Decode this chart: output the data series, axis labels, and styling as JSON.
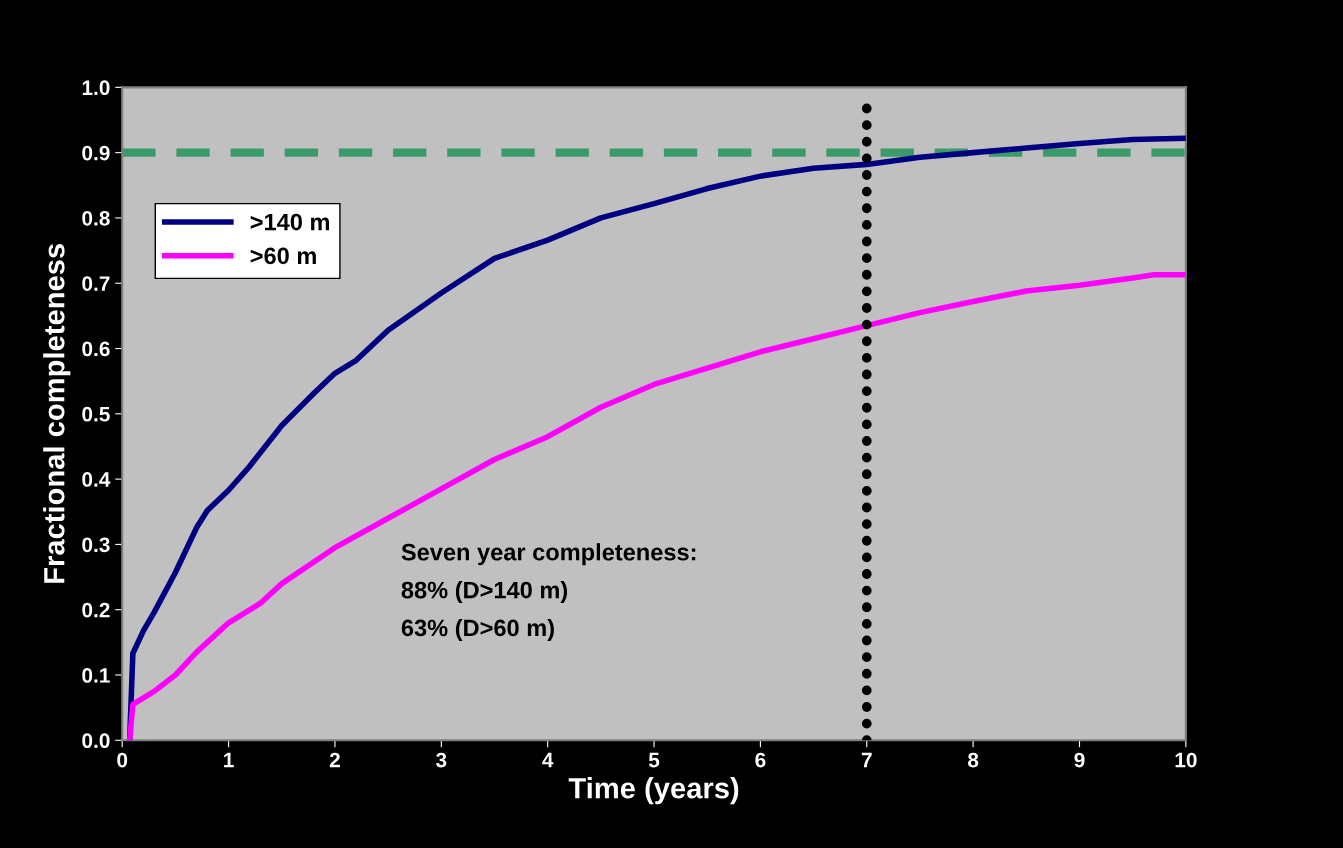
{
  "chart_data": {
    "type": "line",
    "xlabel": "Time (years)",
    "ylabel": "Fractional completeness",
    "xlim": [
      0,
      10
    ],
    "xticks": [
      0,
      1,
      2,
      3,
      4,
      5,
      6,
      7,
      8,
      9,
      10
    ],
    "ylim": [
      0.0,
      1.0
    ],
    "yticks": [
      {
        "value": 0,
        "label": "0.0"
      },
      0.1,
      0.2,
      0.3,
      0.4,
      0.5,
      0.6,
      0.7,
      0.8,
      0.9,
      {
        "value": 1,
        "label": "1.0"
      }
    ],
    "grid": false,
    "legend": "upper left",
    "marker": "none",
    "line_style": "solid",
    "series": [
      {
        "name": ">140 m",
        "color": "#000080",
        "x": [
          0.07,
          0.1,
          0.2,
          0.3,
          0.5,
          0.7,
          0.8,
          1.0,
          1.2,
          1.5,
          1.8,
          2.0,
          2.2,
          2.5,
          3.0,
          3.5,
          4.0,
          4.5,
          5.0,
          5.5,
          6.0,
          6.5,
          7.0,
          7.5,
          8.0,
          8.5,
          9.0,
          9.5,
          10.0
        ],
        "values": [
          0,
          0.133,
          0.168,
          0.196,
          0.257,
          0.326,
          0.352,
          0.383,
          0.42,
          0.482,
          0.531,
          0.562,
          0.582,
          0.628,
          0.685,
          0.738,
          0.766,
          0.8,
          0.822,
          0.845,
          0.864,
          0.876,
          0.882,
          0.893,
          0.9,
          0.907,
          0.914,
          0.92,
          0.922
        ]
      },
      {
        "name": ">60 m",
        "color": "#ff00ff",
        "x": [
          0.07,
          0.1,
          0.3,
          0.5,
          0.7,
          1.0,
          1.3,
          1.5,
          2.0,
          2.5,
          3.0,
          3.5,
          4.0,
          4.5,
          5.0,
          5.5,
          6.0,
          6.5,
          7.0,
          7.5,
          8.0,
          8.5,
          9.0,
          9.5,
          9.7,
          10.0
        ],
        "values": [
          0,
          0.055,
          0.075,
          0.1,
          0.135,
          0.18,
          0.21,
          0.24,
          0.295,
          0.34,
          0.385,
          0.43,
          0.465,
          0.51,
          0.545,
          0.57,
          0.595,
          0.615,
          0.635,
          0.655,
          0.672,
          0.688,
          0.697,
          0.708,
          0.713,
          0.713
        ]
      }
    ],
    "ref_lines": [
      {
        "axis": "y",
        "value": 0.9,
        "color": "#3a9a6a",
        "line_style": "dashed"
      },
      {
        "axis": "x",
        "value": 7,
        "color": "#000000",
        "line_style": "dotted"
      }
    ],
    "annotations": [
      "Seven year completeness:",
      "88% (D>140 m)",
      "63% (D>60 m)"
    ]
  }
}
